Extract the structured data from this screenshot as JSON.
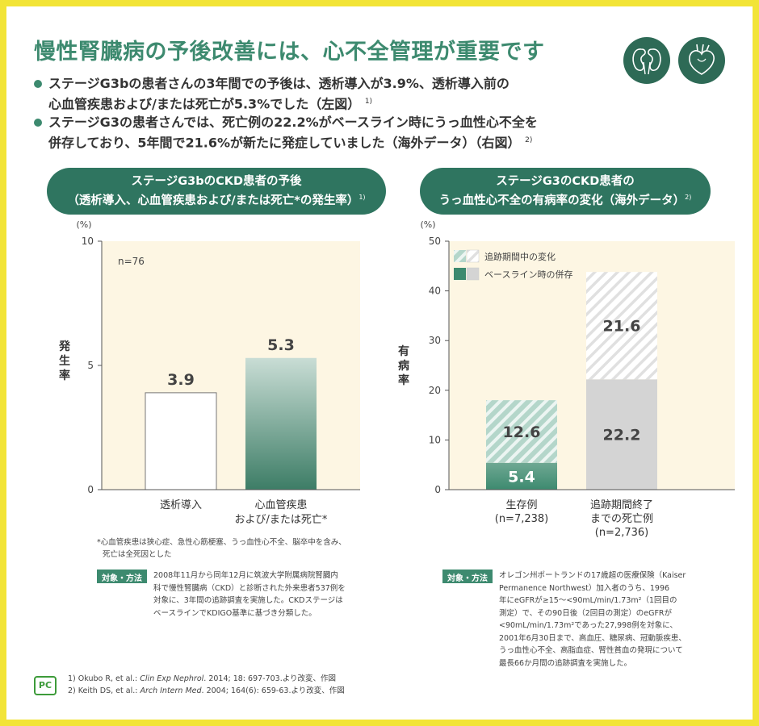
{
  "title": "慢性腎臓病の予後改善には、心不全管理が重要です",
  "icons": [
    "kidney-icon",
    "heart-icon"
  ],
  "bullets": [
    {
      "line1": "ステージG3bの患者さんの3年間での予後は、透析導入が3.9%、透析導入前の",
      "line2": "心血管疾患および/または死亡が5.3%でした（左図）",
      "ref": "1)"
    },
    {
      "line1": "ステージG3の患者さんでは、死亡例の22.2%がベースライン時にうっ血性心不全を",
      "line2": "併存しており、5年間で21.6%が新たに発症していました（海外データ）（右図）",
      "ref": "2)"
    }
  ],
  "left_panel": {
    "pill_line1": "ステージG3bのCKD患者の予後",
    "pill_line2": "（透析導入、心血管疾患および/または死亡*の発生率）",
    "pill_ref": "1)",
    "footnote_line1": "*心血管疾患は狭心症、急性心筋梗塞、うっ血性心不全、脳卒中を含み、",
    "footnote_line2": "死亡は全死因とした",
    "method_label": "対象・方法",
    "method_lines": [
      "2008年11月から同年12月に筑波大学附属病院腎臓内",
      "科で慢性腎臓病（CKD）と診断された外来患者537例を",
      "対象に、3年間の追跡調査を実施した。CKDステージは",
      "ベースラインでKDIGO基準に基づき分類した。"
    ]
  },
  "right_panel": {
    "pill_line1": "ステージG3のCKD患者の",
    "pill_line2": "うっ血性心不全の有病率の変化（海外データ）",
    "pill_ref": "2)",
    "method_label": "対象・方法",
    "method_lines": [
      "オレゴン州ポートランドの17歳超の医療保険（Kaiser",
      "Permanence Northwest）加入者のうち、1996",
      "年にeGFRが≥15〜<90mL/min/1.73m²（1回目の",
      "測定）で、その90日後（2回目の測定）のeGFRが",
      "<90mL/min/1.73m²であった27,998例を対象に、",
      "2001年6月30日まで、高血圧、糖尿病、冠動脈疾患、",
      "うっ血性心不全、高脂血症、腎性貧血の発現について",
      "最長66か月間の追跡調査を実施した。"
    ]
  },
  "chart_data": [
    {
      "type": "bar",
      "unit_label": "(%)",
      "ylabel": "発生率",
      "ylim": [
        0,
        10
      ],
      "yticks": [
        0,
        5,
        10
      ],
      "annotation": "n=76",
      "categories": [
        {
          "line1": "透析導入",
          "line2": ""
        },
        {
          "line1": "心血管疾患",
          "line2": "および/または死亡*"
        }
      ],
      "values": [
        3.9,
        5.3
      ],
      "value_labels": [
        "3.9",
        "5.3"
      ],
      "colors": {
        "plot_bg": "#fdf6e3",
        "bar1": "#ffffff",
        "bar2_top": "#c9ddd5",
        "bar2_bottom": "#3d7d66"
      }
    },
    {
      "type": "bar",
      "stacked": true,
      "unit_label": "(%)",
      "ylabel": "有病率",
      "ylim": [
        0,
        50
      ],
      "yticks": [
        0,
        10,
        20,
        30,
        40,
        50
      ],
      "categories": [
        {
          "line1": "生存例",
          "line2": "(n=7,238)",
          "line3": ""
        },
        {
          "line1": "追跡期間終了",
          "line2": "までの死亡例",
          "line3": "(n=2,736)"
        }
      ],
      "series": [
        {
          "name": "ベースライン時の併存",
          "values": [
            5.4,
            22.2
          ],
          "value_labels": [
            "5.4",
            "22.2"
          ]
        },
        {
          "name": "追跡期間中の変化",
          "values": [
            12.6,
            21.6
          ],
          "value_labels": [
            "12.6",
            "21.6"
          ]
        }
      ],
      "legend_position": "top-left",
      "colors": {
        "plot_bg": "#fdf6e3",
        "base_survivor": "#3d8a6f",
        "base_death": "#d4d4d4",
        "change_survivor": "#b4d6ca",
        "change_death": "#e0e0e0"
      }
    }
  ],
  "references": [
    {
      "prefix": "1) Okubo R, et al.: ",
      "journal": "Clin Exp Nephrol",
      "suffix": ". 2014; 18: 697-703.より改変、作図"
    },
    {
      "prefix": "2) Keith DS, et al.: ",
      "journal": "Arch Intern Med",
      "suffix": ". 2004; 164(6): 659-63.より改変、作図"
    }
  ],
  "logo_text": "PC"
}
